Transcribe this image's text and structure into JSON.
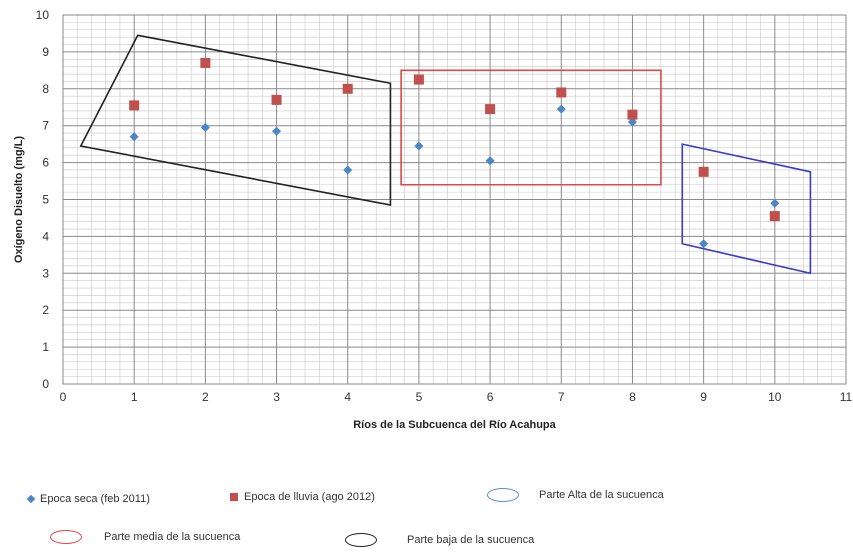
{
  "chart_data": {
    "type": "scatter",
    "xlabel": "Ríos de la Subcuenca del Río Acahupa",
    "ylabel": "Oxígeno Disuelto  (mg/L)",
    "xlim": [
      0,
      11
    ],
    "ylim": [
      0,
      10
    ],
    "x_ticks": [
      "0",
      "1",
      "2",
      "3",
      "4",
      "5",
      "6",
      "7",
      "8",
      "9",
      "10",
      "11"
    ],
    "y_ticks": [
      "0",
      "1",
      "2",
      "3",
      "4",
      "5",
      "6",
      "7",
      "8",
      "9",
      "10"
    ],
    "grid": true,
    "legend_position": "bottom",
    "series": [
      {
        "name": "Epoca seca (feb 2011)",
        "marker": "diamond",
        "color": "#4a86c8",
        "points": [
          [
            1,
            6.7
          ],
          [
            2,
            6.95
          ],
          [
            3,
            6.85
          ],
          [
            4,
            5.8
          ],
          [
            5,
            6.45
          ],
          [
            6,
            6.05
          ],
          [
            7,
            7.45
          ],
          [
            8,
            7.1
          ],
          [
            9,
            3.8
          ],
          [
            10,
            4.9
          ]
        ]
      },
      {
        "name": "Epoca de lluvia (ago 2012)",
        "marker": "square",
        "color": "#c0504d",
        "points": [
          [
            1,
            7.55
          ],
          [
            2,
            8.7
          ],
          [
            3,
            7.7
          ],
          [
            4,
            8.0
          ],
          [
            5,
            8.25
          ],
          [
            6,
            7.45
          ],
          [
            7,
            7.9
          ],
          [
            8,
            7.3
          ],
          [
            9,
            5.75
          ],
          [
            10,
            4.55
          ]
        ]
      }
    ],
    "regions": [
      {
        "name": "Parte baja de la sucuenca",
        "color": "#222222",
        "polygon": [
          [
            0.25,
            6.45
          ],
          [
            1.05,
            9.45
          ],
          [
            4.6,
            8.15
          ],
          [
            4.6,
            4.85
          ]
        ]
      },
      {
        "name": "Parte media  de la sucuenca",
        "color": "#e04848",
        "polygon": [
          [
            4.75,
            8.5
          ],
          [
            8.4,
            8.5
          ],
          [
            8.4,
            5.4
          ],
          [
            4.75,
            5.4
          ]
        ]
      },
      {
        "name": "Parte Alta  de la sucuenca",
        "color": "#3a3acc",
        "polygon": [
          [
            8.7,
            6.5
          ],
          [
            10.5,
            5.75
          ],
          [
            10.5,
            3.0
          ],
          [
            8.7,
            3.8
          ]
        ]
      }
    ],
    "legend": [
      {
        "label": "Epoca seca (feb 2011)",
        "symbol": "diamond",
        "color": "#4a86c8"
      },
      {
        "label": "Epoca de lluvia (ago 2012)",
        "symbol": "square",
        "color": "#c0504d"
      },
      {
        "label": "Parte Alta  de la sucuenca",
        "symbol": "ellipse",
        "color": "#5b8fd6"
      },
      {
        "label": "Parte media  de la sucuenca",
        "symbol": "ellipse",
        "color": "#e04848"
      },
      {
        "label": "Parte baja de la sucuenca",
        "symbol": "ellipse",
        "color": "#222222"
      }
    ]
  }
}
